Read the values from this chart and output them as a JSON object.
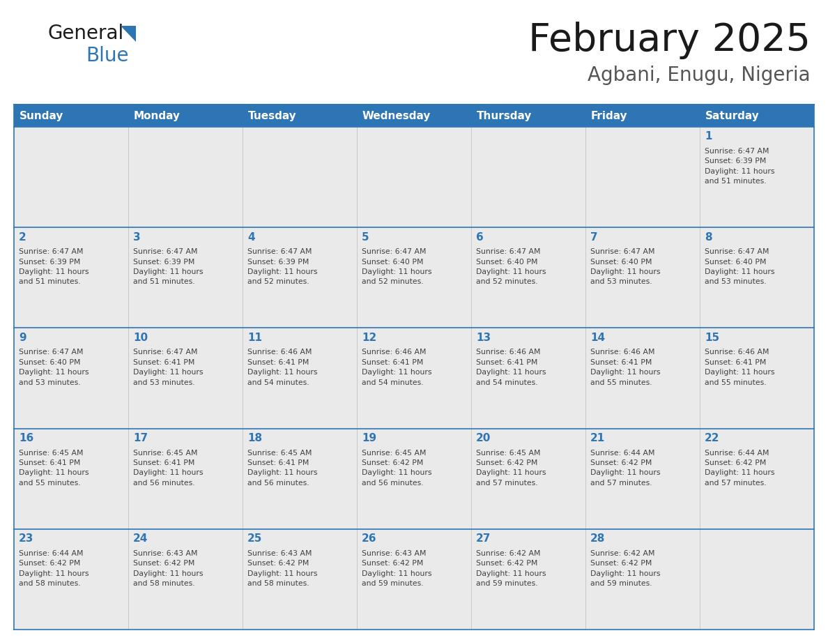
{
  "title": "February 2025",
  "subtitle": "Agbani, Enugu, Nigeria",
  "header_color": "#2E75B6",
  "header_text_color": "#FFFFFF",
  "cell_bg_color": "#EAEAEA",
  "grid_line_color": "#2E75B6",
  "number_color": "#2E75B6",
  "text_color": "#404040",
  "day_names": [
    "Sunday",
    "Monday",
    "Tuesday",
    "Wednesday",
    "Thursday",
    "Friday",
    "Saturday"
  ],
  "weeks": [
    [
      {
        "day": null,
        "info": null
      },
      {
        "day": null,
        "info": null
      },
      {
        "day": null,
        "info": null
      },
      {
        "day": null,
        "info": null
      },
      {
        "day": null,
        "info": null
      },
      {
        "day": null,
        "info": null
      },
      {
        "day": 1,
        "info": "Sunrise: 6:47 AM\nSunset: 6:39 PM\nDaylight: 11 hours\nand 51 minutes."
      }
    ],
    [
      {
        "day": 2,
        "info": "Sunrise: 6:47 AM\nSunset: 6:39 PM\nDaylight: 11 hours\nand 51 minutes."
      },
      {
        "day": 3,
        "info": "Sunrise: 6:47 AM\nSunset: 6:39 PM\nDaylight: 11 hours\nand 51 minutes."
      },
      {
        "day": 4,
        "info": "Sunrise: 6:47 AM\nSunset: 6:39 PM\nDaylight: 11 hours\nand 52 minutes."
      },
      {
        "day": 5,
        "info": "Sunrise: 6:47 AM\nSunset: 6:40 PM\nDaylight: 11 hours\nand 52 minutes."
      },
      {
        "day": 6,
        "info": "Sunrise: 6:47 AM\nSunset: 6:40 PM\nDaylight: 11 hours\nand 52 minutes."
      },
      {
        "day": 7,
        "info": "Sunrise: 6:47 AM\nSunset: 6:40 PM\nDaylight: 11 hours\nand 53 minutes."
      },
      {
        "day": 8,
        "info": "Sunrise: 6:47 AM\nSunset: 6:40 PM\nDaylight: 11 hours\nand 53 minutes."
      }
    ],
    [
      {
        "day": 9,
        "info": "Sunrise: 6:47 AM\nSunset: 6:40 PM\nDaylight: 11 hours\nand 53 minutes."
      },
      {
        "day": 10,
        "info": "Sunrise: 6:47 AM\nSunset: 6:41 PM\nDaylight: 11 hours\nand 53 minutes."
      },
      {
        "day": 11,
        "info": "Sunrise: 6:46 AM\nSunset: 6:41 PM\nDaylight: 11 hours\nand 54 minutes."
      },
      {
        "day": 12,
        "info": "Sunrise: 6:46 AM\nSunset: 6:41 PM\nDaylight: 11 hours\nand 54 minutes."
      },
      {
        "day": 13,
        "info": "Sunrise: 6:46 AM\nSunset: 6:41 PM\nDaylight: 11 hours\nand 54 minutes."
      },
      {
        "day": 14,
        "info": "Sunrise: 6:46 AM\nSunset: 6:41 PM\nDaylight: 11 hours\nand 55 minutes."
      },
      {
        "day": 15,
        "info": "Sunrise: 6:46 AM\nSunset: 6:41 PM\nDaylight: 11 hours\nand 55 minutes."
      }
    ],
    [
      {
        "day": 16,
        "info": "Sunrise: 6:45 AM\nSunset: 6:41 PM\nDaylight: 11 hours\nand 55 minutes."
      },
      {
        "day": 17,
        "info": "Sunrise: 6:45 AM\nSunset: 6:41 PM\nDaylight: 11 hours\nand 56 minutes."
      },
      {
        "day": 18,
        "info": "Sunrise: 6:45 AM\nSunset: 6:41 PM\nDaylight: 11 hours\nand 56 minutes."
      },
      {
        "day": 19,
        "info": "Sunrise: 6:45 AM\nSunset: 6:42 PM\nDaylight: 11 hours\nand 56 minutes."
      },
      {
        "day": 20,
        "info": "Sunrise: 6:45 AM\nSunset: 6:42 PM\nDaylight: 11 hours\nand 57 minutes."
      },
      {
        "day": 21,
        "info": "Sunrise: 6:44 AM\nSunset: 6:42 PM\nDaylight: 11 hours\nand 57 minutes."
      },
      {
        "day": 22,
        "info": "Sunrise: 6:44 AM\nSunset: 6:42 PM\nDaylight: 11 hours\nand 57 minutes."
      }
    ],
    [
      {
        "day": 23,
        "info": "Sunrise: 6:44 AM\nSunset: 6:42 PM\nDaylight: 11 hours\nand 58 minutes."
      },
      {
        "day": 24,
        "info": "Sunrise: 6:43 AM\nSunset: 6:42 PM\nDaylight: 11 hours\nand 58 minutes."
      },
      {
        "day": 25,
        "info": "Sunrise: 6:43 AM\nSunset: 6:42 PM\nDaylight: 11 hours\nand 58 minutes."
      },
      {
        "day": 26,
        "info": "Sunrise: 6:43 AM\nSunset: 6:42 PM\nDaylight: 11 hours\nand 59 minutes."
      },
      {
        "day": 27,
        "info": "Sunrise: 6:42 AM\nSunset: 6:42 PM\nDaylight: 11 hours\nand 59 minutes."
      },
      {
        "day": 28,
        "info": "Sunrise: 6:42 AM\nSunset: 6:42 PM\nDaylight: 11 hours\nand 59 minutes."
      },
      {
        "day": null,
        "info": null
      }
    ]
  ],
  "fig_width": 11.88,
  "fig_height": 9.18,
  "logo_general_color": "#1a1a1a",
  "logo_blue_color": "#2E75B6",
  "title_color": "#1a1a1a",
  "subtitle_color": "#555555"
}
